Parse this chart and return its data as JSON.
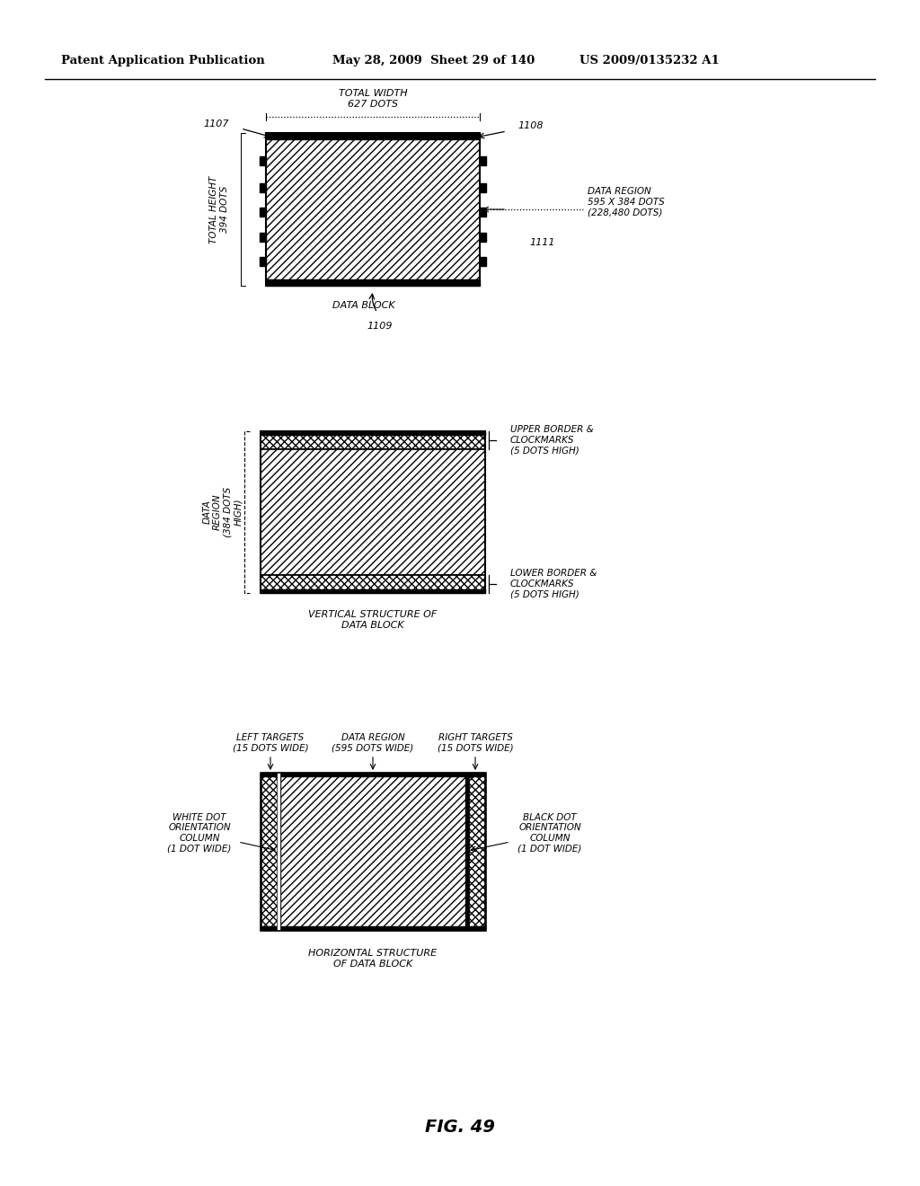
{
  "header_left": "Patent Application Publication",
  "header_mid": "May 28, 2009  Sheet 29 of 140",
  "header_right": "US 2009/0135232 A1",
  "fig_label": "FIG. 49",
  "bg_color": "#ffffff"
}
